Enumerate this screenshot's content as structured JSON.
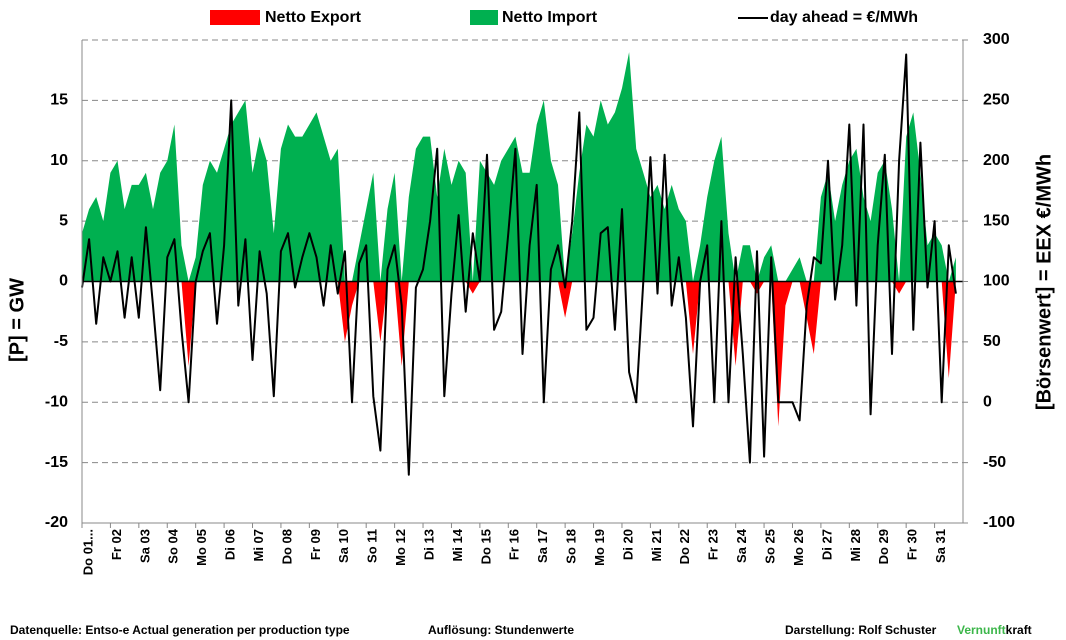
{
  "chart_data": {
    "type": "area-line",
    "ylabel": "[P] = GW",
    "y2label": "[Börsenwert] =  EEX  €/MWh",
    "xlim": [
      0,
      31
    ],
    "xticks": [
      {
        "value": 0,
        "label": "Do 01..."
      },
      {
        "value": 1,
        "label": "Fr 02"
      },
      {
        "value": 2,
        "label": "Sa 03"
      },
      {
        "value": 3,
        "label": "So 04"
      },
      {
        "value": 4,
        "label": "Mo 05"
      },
      {
        "value": 5,
        "label": "Di 06"
      },
      {
        "value": 6,
        "label": "Mi 07"
      },
      {
        "value": 7,
        "label": "Do 08"
      },
      {
        "value": 8,
        "label": "Fr 09"
      },
      {
        "value": 9,
        "label": "Sa 10"
      },
      {
        "value": 10,
        "label": "So 11"
      },
      {
        "value": 11,
        "label": "Mo 12"
      },
      {
        "value": 12,
        "label": "Di 13"
      },
      {
        "value": 13,
        "label": "Mi 14"
      },
      {
        "value": 14,
        "label": "Do 15"
      },
      {
        "value": 15,
        "label": "Fr 16"
      },
      {
        "value": 16,
        "label": "Sa 17"
      },
      {
        "value": 17,
        "label": "So 18"
      },
      {
        "value": 18,
        "label": "Mo 19"
      },
      {
        "value": 19,
        "label": "Di 20"
      },
      {
        "value": 20,
        "label": "Mi 21"
      },
      {
        "value": 21,
        "label": "Do 22"
      },
      {
        "value": 22,
        "label": "Fr 23"
      },
      {
        "value": 23,
        "label": "Sa 24"
      },
      {
        "value": 24,
        "label": "So 25"
      },
      {
        "value": 25,
        "label": "Mo 26"
      },
      {
        "value": 26,
        "label": "Di 27"
      },
      {
        "value": 27,
        "label": "Mi 28"
      },
      {
        "value": 28,
        "label": "Do 29"
      },
      {
        "value": 29,
        "label": "Fr 30"
      },
      {
        "value": 30,
        "label": "Sa 31"
      }
    ],
    "ylim": [
      -20,
      20
    ],
    "yticks": [
      -20,
      -15,
      -10,
      -5,
      0,
      5,
      10,
      15
    ],
    "y2lim": [
      -100,
      300
    ],
    "y2ticks": [
      -100,
      -50,
      0,
      50,
      100,
      150,
      200,
      250,
      300
    ],
    "grid": true,
    "x": [
      0,
      0.25,
      0.5,
      0.75,
      1,
      1.25,
      1.5,
      1.75,
      2,
      2.25,
      2.5,
      2.75,
      3,
      3.25,
      3.5,
      3.75,
      4,
      4.25,
      4.5,
      4.75,
      5,
      5.25,
      5.5,
      5.75,
      6,
      6.25,
      6.5,
      6.75,
      7,
      7.25,
      7.5,
      7.75,
      8,
      8.25,
      8.5,
      8.75,
      9,
      9.25,
      9.5,
      9.75,
      10,
      10.25,
      10.5,
      10.75,
      11,
      11.25,
      11.5,
      11.75,
      12,
      12.25,
      12.5,
      12.75,
      13,
      13.25,
      13.5,
      13.75,
      14,
      14.25,
      14.5,
      14.75,
      15,
      15.25,
      15.5,
      15.75,
      16,
      16.25,
      16.5,
      16.75,
      17,
      17.25,
      17.5,
      17.75,
      18,
      18.25,
      18.5,
      18.75,
      19,
      19.25,
      19.5,
      19.75,
      20,
      20.25,
      20.5,
      20.75,
      21,
      21.25,
      21.5,
      21.75,
      22,
      22.25,
      22.5,
      22.75,
      23,
      23.25,
      23.5,
      23.75,
      24,
      24.25,
      24.5,
      24.75,
      25,
      25.25,
      25.5,
      25.75,
      26,
      26.25,
      26.5,
      26.75,
      27,
      27.25,
      27.5,
      27.75,
      28,
      28.25,
      28.5,
      28.75,
      29,
      29.25,
      29.5,
      29.75,
      30,
      30.25,
      30.5,
      30.75
    ],
    "series": [
      {
        "name": "Netto Export",
        "color": "#ff0000",
        "kind": "area",
        "values": [
          0,
          0,
          0,
          0,
          0,
          0,
          0,
          0,
          0,
          0,
          0,
          0,
          0,
          0,
          0,
          -7,
          0,
          0,
          0,
          0,
          0,
          0,
          0,
          0,
          0,
          0,
          0,
          0,
          0,
          0,
          0,
          0,
          0,
          0,
          0,
          0,
          0,
          -5,
          -2,
          0,
          0,
          0,
          -5,
          0,
          0,
          -7,
          0,
          0,
          0,
          0,
          0,
          0,
          0,
          0,
          0,
          -1,
          0,
          0,
          0,
          0,
          0,
          0,
          0,
          0,
          0,
          0,
          0,
          0,
          -3,
          0,
          0,
          0,
          0,
          0,
          0,
          0,
          0,
          0,
          0,
          0,
          0,
          0,
          0,
          0,
          0,
          0,
          -6,
          0,
          0,
          0,
          0,
          0,
          -7,
          0,
          0,
          -1,
          0,
          0,
          -12,
          -2,
          0,
          0,
          -3,
          -6,
          0,
          0,
          0,
          0,
          0,
          0,
          0,
          0,
          0,
          0,
          0,
          -1,
          0,
          0,
          0,
          0,
          0,
          0,
          -8,
          0
        ]
      },
      {
        "name": "Netto Import",
        "color": "#00b050",
        "kind": "area",
        "values": [
          4,
          6,
          7,
          5,
          9,
          10,
          6,
          8,
          8,
          9,
          6,
          9,
          10,
          13,
          3,
          0,
          2,
          8,
          10,
          9,
          11,
          13,
          14,
          15,
          9,
          12,
          10,
          4,
          11,
          13,
          12,
          12,
          13,
          14,
          12,
          10,
          11,
          0,
          0,
          3,
          6,
          9,
          0,
          6,
          9,
          0,
          7,
          11,
          12,
          12,
          7,
          11,
          8,
          10,
          9,
          0,
          10,
          9,
          8,
          10,
          11,
          12,
          9,
          9,
          13,
          15,
          10,
          8,
          0,
          4,
          9,
          13,
          12,
          15,
          13,
          14,
          16,
          19,
          11,
          9,
          7,
          8,
          6,
          8,
          6,
          5,
          0,
          3,
          7,
          10,
          12,
          4,
          0,
          3,
          3,
          0,
          2,
          3,
          0,
          0,
          1,
          2,
          0,
          0,
          7,
          9,
          5,
          8,
          10,
          11,
          7,
          5,
          9,
          10,
          6,
          0,
          12,
          14,
          9,
          3,
          4,
          3,
          0,
          2
        ]
      },
      {
        "name": "day ahead = €/MWh",
        "color": "#000000",
        "kind": "line",
        "axis": "y2",
        "values": [
          95,
          135,
          65,
          120,
          100,
          125,
          70,
          120,
          70,
          145,
          80,
          10,
          120,
          135,
          60,
          0,
          100,
          125,
          140,
          65,
          130,
          250,
          80,
          135,
          35,
          125,
          90,
          5,
          125,
          140,
          95,
          120,
          140,
          120,
          80,
          130,
          90,
          125,
          0,
          115,
          130,
          5,
          -40,
          110,
          130,
          80,
          -60,
          95,
          110,
          150,
          210,
          5,
          90,
          155,
          75,
          140,
          100,
          205,
          60,
          75,
          140,
          210,
          40,
          130,
          180,
          0,
          110,
          130,
          95,
          150,
          240,
          60,
          70,
          140,
          145,
          60,
          160,
          25,
          0,
          100,
          203,
          90,
          205,
          80,
          120,
          70,
          -20,
          100,
          130,
          0,
          150,
          0,
          120,
          40,
          -50,
          125,
          -45,
          120,
          0,
          0,
          0,
          -15,
          80,
          120,
          115,
          200,
          85,
          130,
          230,
          80,
          230,
          -10,
          130,
          205,
          40,
          200,
          288,
          60,
          215,
          95,
          150,
          0,
          130,
          90
        ]
      }
    ],
    "footer": {
      "source": "Datenquelle: Entso-e  Actual generation per production type",
      "resolution": "Auflösung: Stundenwerte",
      "author": "Darstellung:  Rolf Schuster",
      "brand1": "Vernunft",
      "brand2": "kraft",
      "brand1_color": "#3cb64a"
    }
  }
}
